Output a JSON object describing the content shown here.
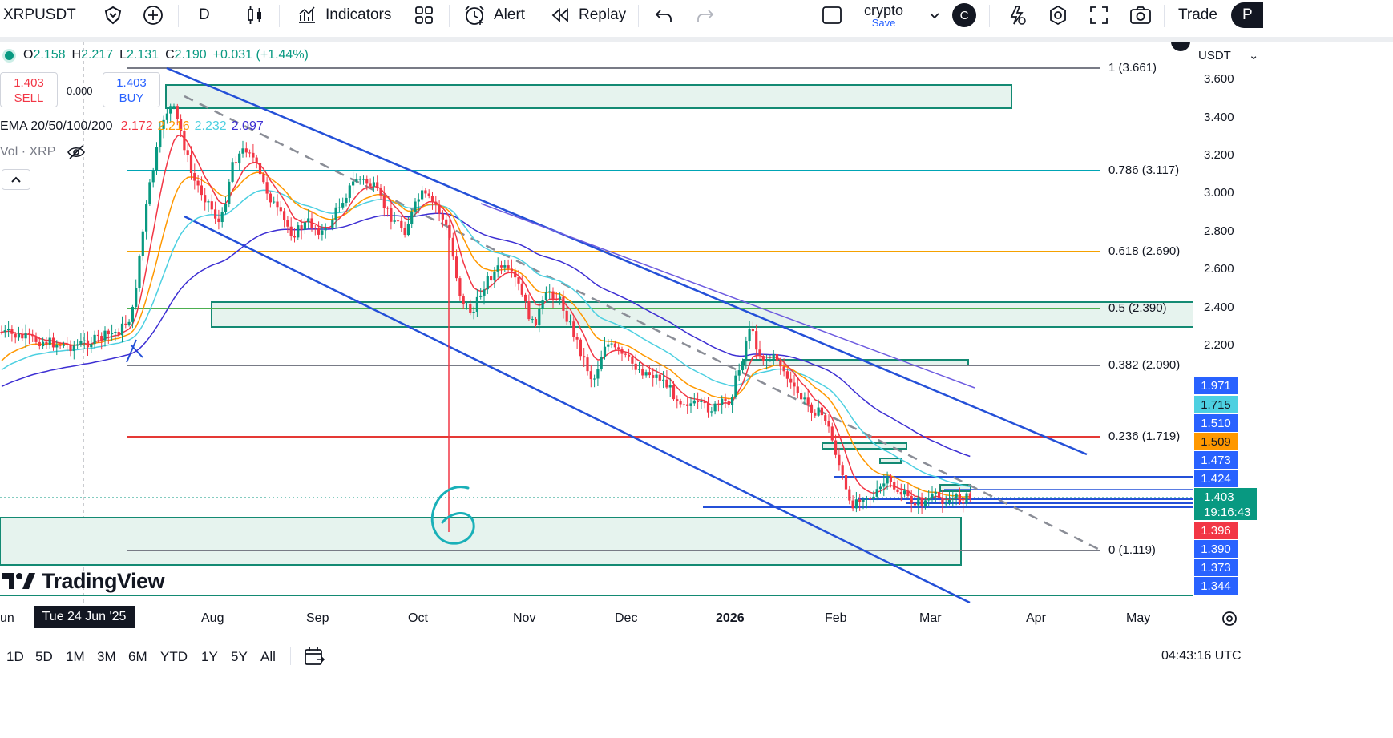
{
  "toolbar": {
    "symbol": "XRPUSDT",
    "interval": "D",
    "indicators_label": "Indicators",
    "alert_label": "Alert",
    "replay_label": "Replay",
    "layout_name": "crypto",
    "layout_save": "Save",
    "avatar_letter": "C",
    "trade_label": "Trade",
    "right_cut": "P"
  },
  "legend": {
    "ohlc": {
      "o_key": "O",
      "o": "2.158",
      "h_key": "H",
      "h": "2.217",
      "l_key": "L",
      "l": "2.131",
      "c_key": "C",
      "c": "2.190",
      "change": "+0.031 (+1.44%)"
    },
    "sell_price": "1.403",
    "sell_label": "SELL",
    "spread": "0.000",
    "buy_price": "1.403",
    "buy_label": "BUY",
    "ema_label": "EMA 20/50/100/200",
    "ema_values": [
      "2.172",
      "2.216",
      "2.232",
      "2.097"
    ],
    "vol_label": "Vol · XRP"
  },
  "colors": {
    "ema20": "#f23645",
    "ema50": "#ff9800",
    "ema100": "#4dd0e1",
    "ema200": "#3d2fd3",
    "up": "#089981",
    "down": "#f23645",
    "channel": "#2450d8"
  },
  "price_scale": {
    "currency": "USDT",
    "ticks": [
      "3.600",
      "3.400",
      "3.200",
      "3.000",
      "2.800",
      "2.600",
      "2.400",
      "2.200"
    ],
    "tags": [
      {
        "value": "1.971",
        "bg": "#2962ff",
        "fg": "#ffffff"
      },
      {
        "value": "1.715",
        "bg": "#4dd0e1",
        "fg": "#131722"
      },
      {
        "value": "1.510",
        "bg": "#2962ff",
        "fg": "#ffffff"
      },
      {
        "value": "1.509",
        "bg": "#ff9800",
        "fg": "#131722"
      },
      {
        "value": "1.473",
        "bg": "#2962ff",
        "fg": "#ffffff"
      },
      {
        "value": "1.424",
        "bg": "#2962ff",
        "fg": "#ffffff"
      },
      {
        "value": "1.396",
        "bg": "#f23645",
        "fg": "#ffffff"
      },
      {
        "value": "1.390",
        "bg": "#2962ff",
        "fg": "#ffffff"
      },
      {
        "value": "1.373",
        "bg": "#2962ff",
        "fg": "#ffffff"
      },
      {
        "value": "1.344",
        "bg": "#2962ff",
        "fg": "#ffffff"
      }
    ],
    "last_price": "1.403",
    "countdown": "19:16:43"
  },
  "fib_levels": [
    {
      "label": "1 (3.661)",
      "color": "#787b86"
    },
    {
      "label": "0.786 (3.117)",
      "color": "#00a5b5"
    },
    {
      "label": "0.618 (2.690)",
      "color": "#f5a100"
    },
    {
      "label": "0.5 (2.390)",
      "color": "#4caf50"
    },
    {
      "label": "0.382 (2.090)",
      "color": "#787b86"
    },
    {
      "label": "0.236 (1.719)",
      "color": "#f23645"
    },
    {
      "label": "0 (1.119)",
      "color": "#787b86"
    }
  ],
  "time_axis": {
    "labels": [
      "un",
      "Aug",
      "Sep",
      "Oct",
      "Nov",
      "Dec",
      "2026",
      "Feb",
      "Mar",
      "Apr",
      "May"
    ],
    "cursor_date": "Tue 24 Jun '25"
  },
  "bottom_bar": {
    "ranges": [
      "1D",
      "5D",
      "1M",
      "3M",
      "6M",
      "YTD",
      "1Y",
      "5Y",
      "All"
    ],
    "clock": "04:43:16 UTC"
  },
  "annotation_text": "6",
  "logo_text": "TradingView"
}
